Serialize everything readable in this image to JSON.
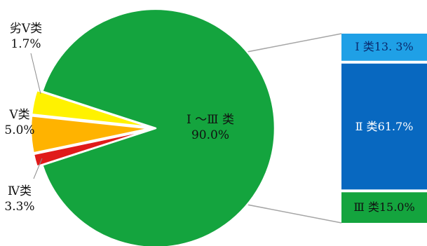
{
  "chart_data": {
    "type": "pie",
    "subtype": "pie-of-bar",
    "pie": {
      "slices": [
        {
          "label": "I ～Ⅲ 类",
          "value": 90.0,
          "value_text": "90.0%",
          "color": "#14A43E"
        },
        {
          "label": "劣Ⅴ类",
          "value": 1.7,
          "value_text": "1.7%",
          "color": "#E01A1A"
        },
        {
          "label": "Ⅴ类",
          "value": 5.0,
          "value_text": "5.0%",
          "color": "#FFB300"
        },
        {
          "label": "Ⅳ类",
          "value": 3.3,
          "value_text": "3.3%",
          "color": "#FFF200"
        }
      ]
    },
    "bar": {
      "source_slice": "I ～Ⅲ 类",
      "segments": [
        {
          "label": "Ⅰ 类",
          "value": 13.3,
          "value_text": "13. 3%",
          "color": "#1FA0E6",
          "text_color": "#0A2A6E"
        },
        {
          "label": "Ⅱ 类",
          "value": 61.7,
          "value_text": "61.7%",
          "color": "#0868C0",
          "text_color": "#FFFFFF"
        },
        {
          "label": "Ⅲ 类",
          "value": 15.0,
          "value_text": "15.0%",
          "color": "#14A43E",
          "text_color": "#111111"
        }
      ]
    }
  }
}
